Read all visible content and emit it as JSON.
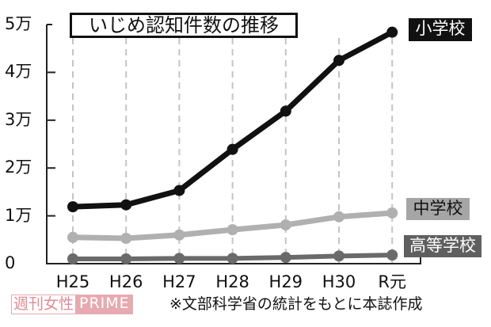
{
  "chart_data": {
    "type": "line",
    "title": "いじめ認知件数の推移",
    "xlabel": "",
    "ylabel": "",
    "categories": [
      "H25",
      "H26",
      "H27",
      "H28",
      "H29",
      "H30",
      "R元"
    ],
    "y_ticks": [
      "0",
      "1万",
      "2万",
      "3万",
      "4万",
      "5万"
    ],
    "y_tick_values": [
      0,
      1,
      2,
      3,
      4,
      5
    ],
    "ylim": [
      0,
      5
    ],
    "unit": "万",
    "grid": "vertical dashed lines at each category",
    "legend_position": "right, labels at line ends",
    "series": [
      {
        "name": "小学校",
        "color": "#111111",
        "values": [
          1.19,
          1.23,
          1.53,
          2.39,
          3.19,
          4.25,
          4.84
        ]
      },
      {
        "name": "中学校",
        "color": "#b0b0b0",
        "values": [
          0.55,
          0.53,
          0.6,
          0.71,
          0.81,
          0.98,
          1.06
        ]
      },
      {
        "name": "高等学校",
        "color": "#6a6a6a",
        "values": [
          0.1,
          0.1,
          0.11,
          0.11,
          0.13,
          0.16,
          0.18
        ]
      }
    ]
  },
  "title": "いじめ認知件数の推移",
  "legend": {
    "elementary": "小学校",
    "middle": "中学校",
    "high": "高等学校"
  },
  "logo": {
    "part1": "週刊女性",
    "part2": "PRIME",
    "color": "#e6aab0"
  },
  "source_note": "※文部科学省の統計をもとに本誌作成"
}
